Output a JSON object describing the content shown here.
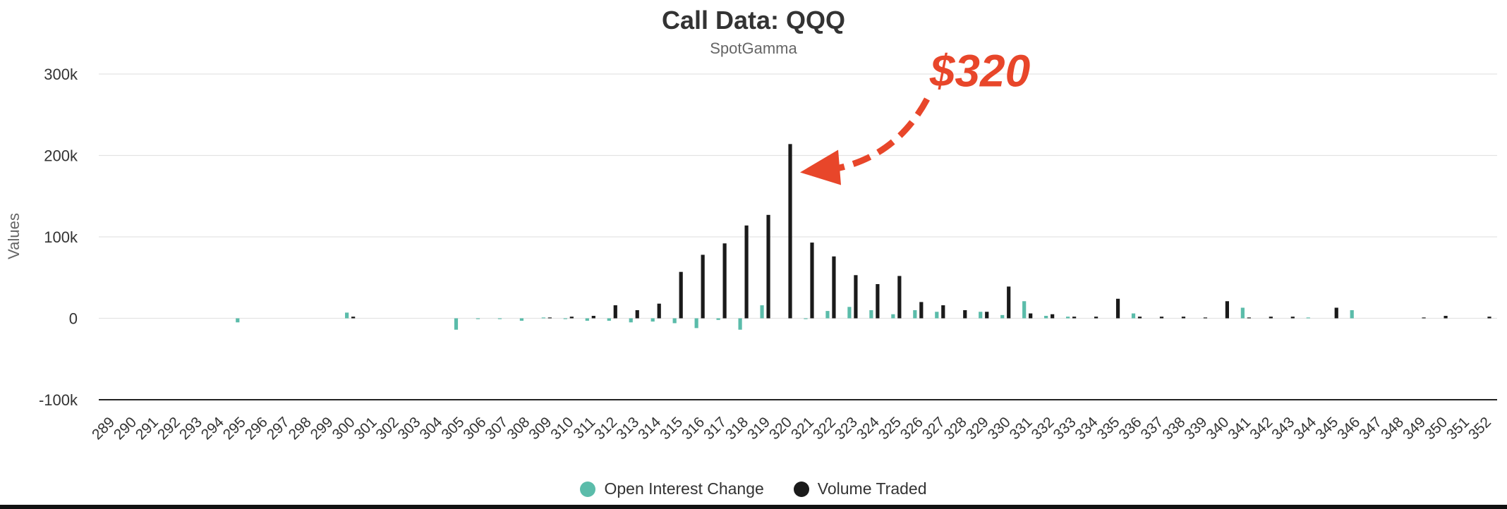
{
  "chart_data": {
    "type": "bar",
    "title": "Call Data: QQQ",
    "subtitle": "SpotGamma",
    "ylabel": "Values",
    "ylim": [
      -100000,
      300000
    ],
    "yticks": [
      300000,
      200000,
      100000,
      0,
      -100000
    ],
    "ytick_labels": [
      "300k",
      "200k",
      "100k",
      "0",
      "-100k"
    ],
    "grid": true,
    "legend_position": "bottom-center",
    "categories": [
      "289",
      "290",
      "291",
      "292",
      "293",
      "294",
      "295",
      "296",
      "297",
      "298",
      "299",
      "300",
      "301",
      "302",
      "303",
      "304",
      "305",
      "306",
      "307",
      "308",
      "309",
      "310",
      "311",
      "312",
      "313",
      "314",
      "315",
      "316",
      "317",
      "318",
      "319",
      "320",
      "321",
      "322",
      "323",
      "324",
      "325",
      "326",
      "327",
      "328",
      "329",
      "330",
      "331",
      "332",
      "333",
      "334",
      "335",
      "336",
      "337",
      "338",
      "339",
      "340",
      "341",
      "342",
      "343",
      "344",
      "345",
      "346",
      "347",
      "348",
      "349",
      "350",
      "351",
      "352"
    ],
    "series": [
      {
        "name": "Open Interest Change",
        "color": "#5bbcaa",
        "values": [
          0,
          0,
          0,
          0,
          0,
          0,
          -5000,
          0,
          0,
          0,
          0,
          7000,
          0,
          0,
          0,
          0,
          -14000,
          -1000,
          -1000,
          -3000,
          1000,
          -1000,
          -3000,
          -3000,
          -5000,
          -4000,
          -6000,
          -12000,
          -2000,
          -14000,
          16000,
          0,
          -1000,
          9000,
          14000,
          10000,
          5000,
          10000,
          8000,
          0,
          8000,
          4000,
          21000,
          3000,
          2000,
          0,
          0,
          6000,
          0,
          0,
          0,
          0,
          13000,
          0,
          0,
          1000,
          0,
          10000,
          0,
          0,
          0,
          0,
          0,
          0
        ]
      },
      {
        "name": "Volume Traded",
        "color": "#1a1a1a",
        "values": [
          0,
          0,
          0,
          0,
          0,
          0,
          0,
          0,
          0,
          0,
          0,
          2000,
          0,
          0,
          0,
          0,
          0,
          0,
          0,
          0,
          1000,
          2000,
          3000,
          16000,
          10000,
          18000,
          57000,
          78000,
          92000,
          114000,
          127000,
          214000,
          93000,
          76000,
          53000,
          42000,
          52000,
          20000,
          16000,
          10000,
          8000,
          39000,
          6000,
          5000,
          2000,
          2000,
          24000,
          2000,
          2000,
          2000,
          1000,
          21000,
          1000,
          2000,
          2000,
          0,
          13000,
          0,
          0,
          0,
          1000,
          3000,
          0,
          2000
        ]
      }
    ],
    "annotation": {
      "text": "$320",
      "color": "#e8462a",
      "target_category": "320",
      "target_value": 200000
    }
  }
}
